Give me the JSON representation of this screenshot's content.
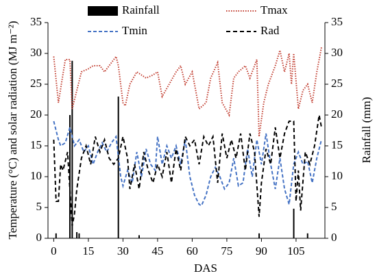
{
  "chart_data": {
    "type": "line",
    "xlabel": "DAS",
    "ylabel": "Temperature (°C) and solar radiation (MJ m⁻²)",
    "y2label": "Rainfall (mm)",
    "xlim": [
      -2.5,
      117.5
    ],
    "xticks": [
      0,
      15,
      30,
      45,
      60,
      75,
      90,
      105
    ],
    "ylim": [
      0,
      35
    ],
    "yticks": [
      0,
      5,
      10,
      15,
      20,
      25,
      30,
      35
    ],
    "y2lim": [
      0,
      35
    ],
    "y2ticks": [
      0,
      5,
      10,
      15,
      20,
      25,
      30,
      35
    ],
    "series": [
      {
        "name": "Rainfall",
        "kind": "bar",
        "axis": "y2",
        "color": "#000000",
        "x": [
          1,
          7,
          8,
          10,
          11,
          28,
          37,
          89,
          104,
          110
        ],
        "values": [
          0.8,
          20,
          28.8,
          1,
          0.8,
          23,
          0.5,
          0.8,
          4.8,
          0.8
        ]
      },
      {
        "name": "Tmax",
        "kind": "line",
        "color": "#c0392b",
        "dash": "1.5,2",
        "x": [
          0,
          2,
          5,
          7,
          8,
          10,
          12,
          15,
          17,
          20,
          22,
          25,
          27,
          28,
          30,
          31,
          33,
          36,
          40,
          43,
          45,
          47,
          50,
          53,
          55,
          57,
          60,
          63,
          66,
          68,
          71,
          73,
          76,
          78,
          80,
          83,
          85,
          88,
          89,
          91,
          93,
          96,
          98,
          100,
          102,
          103,
          104,
          106,
          108,
          110,
          112,
          114,
          116
        ],
        "values": [
          29.5,
          22,
          29,
          29,
          21,
          24,
          27,
          27.5,
          28,
          28,
          27,
          28.5,
          29.5,
          28,
          22,
          21.5,
          25,
          27,
          26,
          26.5,
          27,
          23,
          25,
          27,
          28,
          25,
          27,
          21,
          22,
          26,
          28.5,
          22,
          20,
          26,
          27,
          28,
          26,
          29,
          16.5,
          22,
          25,
          28,
          30.5,
          27,
          30,
          25,
          30,
          21,
          24,
          25,
          22,
          27,
          31
        ]
      },
      {
        "name": "Tmin",
        "kind": "line",
        "color": "#4472c4",
        "dash": "5,3",
        "x": [
          0,
          2,
          3,
          5,
          7,
          9,
          11,
          13,
          15,
          17,
          19,
          21,
          23,
          25,
          27,
          29,
          30,
          32,
          34,
          36,
          38,
          40,
          42,
          44,
          45,
          47,
          49,
          51,
          53,
          55,
          57,
          59,
          61,
          63,
          64,
          66,
          68,
          70,
          72,
          74,
          76,
          78,
          80,
          82,
          84,
          86,
          88,
          90,
          92,
          94,
          96,
          98,
          100,
          102,
          104,
          106,
          108,
          110,
          112,
          114,
          116
        ],
        "values": [
          19,
          16,
          15,
          15.5,
          18,
          15,
          16,
          14,
          15,
          12,
          14,
          15.5,
          14,
          15.5,
          16.5,
          10,
          8.5,
          11,
          9,
          14,
          10,
          14.5,
          12,
          11,
          16.5,
          12,
          15,
          13,
          15,
          12,
          16,
          10,
          7,
          5.5,
          5.3,
          7,
          10,
          11.5,
          10,
          8,
          9,
          13,
          8.5,
          9,
          14.5,
          10,
          16,
          12,
          17,
          12,
          8,
          13,
          8,
          5.5,
          12,
          14,
          12,
          12.5,
          9,
          13,
          16
        ]
      },
      {
        "name": "Rad",
        "kind": "line",
        "color": "#000000",
        "dash": "6,4",
        "x": [
          0,
          1,
          2,
          3,
          4,
          6,
          8,
          9,
          10,
          12,
          14,
          16,
          18,
          20,
          22,
          24,
          26,
          28,
          30,
          32,
          33,
          35,
          37,
          39,
          41,
          43,
          45,
          47,
          49,
          51,
          53,
          55,
          57,
          59,
          61,
          63,
          65,
          67,
          69,
          71,
          73,
          75,
          77,
          79,
          81,
          83,
          85,
          87,
          89,
          90,
          92,
          94,
          96,
          98,
          100,
          102,
          104,
          105,
          106,
          107,
          109,
          111,
          113,
          115,
          116
        ],
        "values": [
          16,
          6,
          6,
          12,
          11,
          14,
          2,
          4,
          8,
          13,
          15,
          12,
          16.5,
          14,
          16,
          13,
          12,
          13,
          16.5,
          13,
          8,
          12,
          8,
          14,
          11,
          9,
          12,
          10,
          14,
          9,
          14.5,
          11,
          16.5,
          15,
          16,
          12,
          16.5,
          15,
          16.5,
          9,
          17,
          13,
          16,
          13,
          17,
          11,
          17,
          14,
          3.5,
          9,
          14.5,
          12,
          18,
          13,
          17,
          19,
          19,
          6,
          11,
          4.5,
          14,
          12,
          15,
          20,
          18
        ]
      }
    ]
  }
}
